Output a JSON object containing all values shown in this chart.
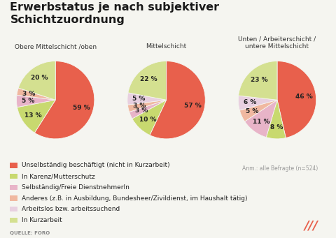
{
  "title": "Erwerbstatus je nach subjektiver\nSchichtzuordnung",
  "subtitle_note": "Anm.: alle Befragte (n=524)",
  "source": "QUELLE: FORO",
  "pie_titles": [
    "Obere Mittelschicht /oben",
    "Mittelschicht",
    "Unten / Arbeiterschicht /\nuntere Mittelschicht"
  ],
  "categories": [
    "Unselbständig beschäftigt (nicht in Kurzarbeit)",
    "In Karenz/Mutterschutz",
    "Selbständig/Freie DienstnehmerIn",
    "Anderes (z.B. in Ausbildung, Bundesheer/Zivildienst, im Haushalt tätig)",
    "Arbeitslos bzw. arbeitssuchend",
    "In Kurzarbeit"
  ],
  "colors": [
    "#e8604c",
    "#c8d96f",
    "#e8b4c8",
    "#f0b8a0",
    "#e8d0e0",
    "#d4e090"
  ],
  "pie1_values": [
    59,
    13,
    5,
    3,
    0,
    20
  ],
  "pie2_values": [
    57,
    10,
    3,
    3,
    5,
    22
  ],
  "pie3_values": [
    46,
    8,
    11,
    5,
    6,
    23
  ],
  "pie1_labels": [
    "59 %",
    "13 %",
    "5 %",
    "3 %",
    "",
    "20 %"
  ],
  "pie2_labels": [
    "57 %",
    "10 %",
    "3 %",
    "3 %",
    "5 %",
    "22 %"
  ],
  "pie3_labels": [
    "46 %",
    "8 %",
    "11 %",
    "5 %",
    "6 %",
    "23 %"
  ],
  "background_color": "#f5f5f0",
  "title_fontsize": 11.5,
  "label_fontsize": 6.5,
  "legend_fontsize": 6.5,
  "subtitle_fontsize": 5.5,
  "pie_title_fontsize": 6.5
}
